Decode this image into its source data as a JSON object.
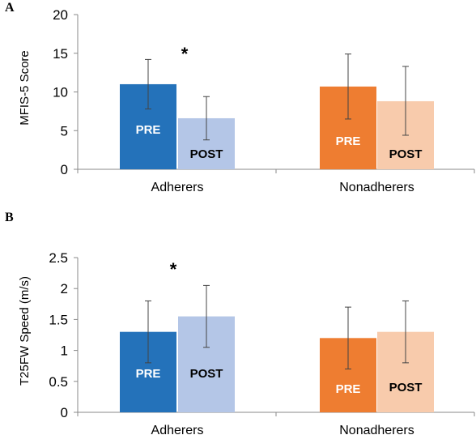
{
  "chart_data": [
    {
      "type": "bar",
      "panel_label": "A",
      "ylabel": "MFIS-5 Score",
      "ylim": [
        0,
        20
      ],
      "yticks": [
        "0",
        "5",
        "10",
        "15",
        "20"
      ],
      "categories": [
        "Adherers",
        "Nonadherers"
      ],
      "series": [
        {
          "name": "PRE",
          "values": [
            11.0,
            10.7
          ],
          "error_low": [
            7.8,
            6.5
          ],
          "error_high": [
            14.2,
            14.9
          ],
          "colors": [
            "#2472BA",
            "#EE7D31"
          ],
          "label_colors": [
            "#ffffff",
            "#ffffff"
          ]
        },
        {
          "name": "POST",
          "values": [
            6.6,
            8.8
          ],
          "error_low": [
            3.8,
            4.4
          ],
          "error_high": [
            9.4,
            13.3
          ],
          "colors": [
            "#B4C6E7",
            "#F8CBAC"
          ],
          "label_colors": [
            "#000000",
            "#000000"
          ]
        }
      ],
      "annotations": [
        {
          "text": "*",
          "category": "Adherers"
        }
      ]
    },
    {
      "type": "bar",
      "panel_label": "B",
      "ylabel": "T25FW Speed (m/s)",
      "ylim": [
        0,
        2.5
      ],
      "yticks": [
        "0",
        "0.5",
        "1",
        "1.5",
        "2",
        "2.5"
      ],
      "categories": [
        "Adherers",
        "Nonadherers"
      ],
      "series": [
        {
          "name": "PRE",
          "values": [
            1.3,
            1.2
          ],
          "error_low": [
            0.8,
            0.7
          ],
          "error_high": [
            1.8,
            1.7
          ],
          "colors": [
            "#2472BA",
            "#EE7D31"
          ],
          "label_colors": [
            "#ffffff",
            "#ffffff"
          ]
        },
        {
          "name": "POST",
          "values": [
            1.55,
            1.3
          ],
          "error_low": [
            1.05,
            0.8
          ],
          "error_high": [
            2.05,
            1.8
          ],
          "colors": [
            "#B4C6E7",
            "#F8CBAC"
          ],
          "label_colors": [
            "#000000",
            "#000000"
          ]
        }
      ],
      "annotations": [
        {
          "text": "*",
          "category": "Adherers"
        }
      ]
    }
  ]
}
